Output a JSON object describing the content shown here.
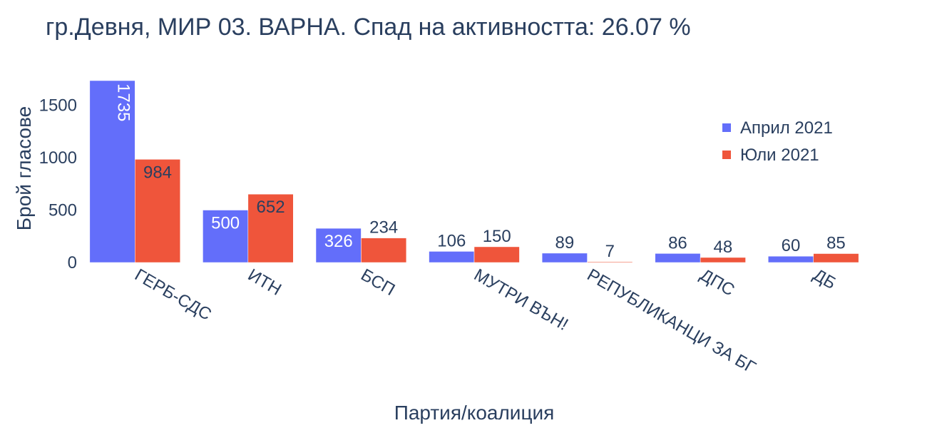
{
  "chart_data": {
    "type": "bar",
    "title": "гр.Девня, МИР 03. ВАРНА. Спад на активността: 26.07 %",
    "xlabel": "Партия/коалиция",
    "ylabel": "Брой гласове",
    "categories": [
      "ГЕРБ-СДС",
      "ИТН",
      "БСП",
      "МУТРИ ВЪН!",
      "РЕПУБЛИКАНЦИ ЗА БГ",
      "ДПС",
      "ДБ"
    ],
    "series": [
      {
        "name": "Април 2021",
        "color": "#636efa",
        "values": [
          1735,
          500,
          326,
          106,
          89,
          86,
          60
        ]
      },
      {
        "name": "Юли 2021",
        "color": "#ef553b",
        "values": [
          984,
          652,
          234,
          150,
          7,
          48,
          85
        ]
      }
    ],
    "ylim": [
      0,
      1735
    ],
    "yticks": [
      0,
      500,
      1000,
      1500
    ],
    "legend_position": "top-right",
    "grid": false
  }
}
